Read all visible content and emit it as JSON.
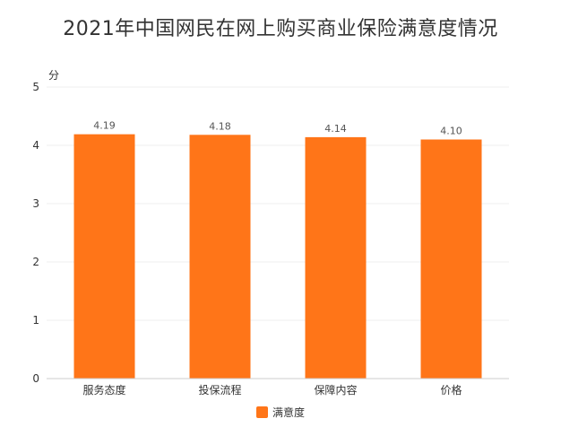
{
  "chart_data": {
    "type": "bar",
    "title": "2021年中国网民在网上购买商业保险满意度情况",
    "ylabel": "分",
    "xlabel": "",
    "categories": [
      "服务态度",
      "投保流程",
      "保障内容",
      "价格"
    ],
    "series": [
      {
        "name": "满意度",
        "values": [
          4.19,
          4.18,
          4.14,
          4.1
        ],
        "labels": [
          "4.19",
          "4.18",
          "4.14",
          "4.10"
        ],
        "color": "#FF7518"
      }
    ],
    "ylim": [
      0,
      5
    ],
    "yticks": [
      "0",
      "1",
      "2",
      "3",
      "4",
      "5"
    ],
    "grid": true,
    "legend": "bottom-center"
  }
}
